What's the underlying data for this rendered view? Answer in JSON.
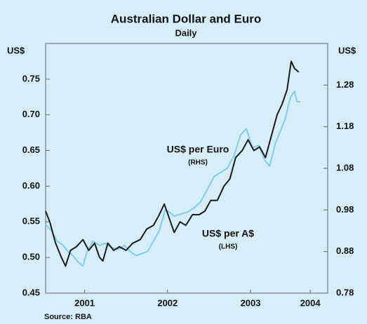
{
  "chart_data": {
    "type": "line",
    "title": "Australian Dollar and Euro",
    "subtitle": "Daily",
    "y_label": "US$",
    "y2_label": "US$",
    "source": "Source: RBA",
    "annotations": [
      {
        "text": "US$ per Euro",
        "note": "(RHS)"
      },
      {
        "text": "US$ per A$",
        "note": "(LHS)"
      }
    ],
    "xlim": [
      2001.03,
      2004.43
    ],
    "xticks": [
      {
        "value": 2001.5,
        "label": "2001"
      },
      {
        "value": 2002.5,
        "label": "2002"
      },
      {
        "value": 2003.5,
        "label": "2003"
      },
      {
        "value": 2004.22,
        "label": "2004"
      }
    ],
    "ylim": [
      0.45,
      0.8
    ],
    "yticks": [
      0.45,
      {
        "value": 0.5,
        "label": "0.50"
      },
      0.55,
      {
        "value": 0.6,
        "label": "0.60"
      },
      0.65,
      {
        "value": 0.7,
        "label": "0.70"
      },
      0.75
    ],
    "y2lim": [
      0.78,
      1.38
    ],
    "y2ticks": [
      0.78,
      0.88,
      0.98,
      1.08,
      1.18,
      1.28
    ],
    "grid": false,
    "series": [
      {
        "name": "US$ per A$",
        "color": "#1a1a1a",
        "axis": "y",
        "x": [
          2001.03,
          2001.08,
          2001.15,
          2001.22,
          2001.27,
          2001.33,
          2001.4,
          2001.48,
          2001.55,
          2001.62,
          2001.68,
          2001.72,
          2001.78,
          2001.85,
          2001.92,
          2002.0,
          2002.08,
          2002.17,
          2002.25,
          2002.33,
          2002.4,
          2002.46,
          2002.52,
          2002.58,
          2002.65,
          2002.72,
          2002.8,
          2002.88,
          2002.95,
          2003.02,
          2003.1,
          2003.18,
          2003.25,
          2003.32,
          2003.4,
          2003.47,
          2003.54,
          2003.61,
          2003.68,
          2003.75,
          2003.82,
          2003.88,
          2003.94,
          2003.99,
          2004.03,
          2004.08
        ],
        "values": [
          0.565,
          0.55,
          0.52,
          0.5,
          0.488,
          0.51,
          0.515,
          0.525,
          0.51,
          0.52,
          0.5,
          0.495,
          0.52,
          0.51,
          0.515,
          0.51,
          0.52,
          0.525,
          0.54,
          0.545,
          0.56,
          0.575,
          0.555,
          0.535,
          0.55,
          0.545,
          0.56,
          0.56,
          0.565,
          0.58,
          0.58,
          0.6,
          0.61,
          0.64,
          0.65,
          0.665,
          0.65,
          0.655,
          0.64,
          0.67,
          0.7,
          0.715,
          0.735,
          0.775,
          0.765,
          0.76
        ]
      },
      {
        "name": "US$ per Euro",
        "color": "#7fcdef",
        "axis": "y2",
        "x": [
          2001.03,
          2001.1,
          2001.17,
          2001.24,
          2001.3,
          2001.36,
          2001.42,
          2001.48,
          2001.53,
          2001.6,
          2001.68,
          2001.75,
          2001.82,
          2001.9,
          2001.98,
          2002.05,
          2002.12,
          2002.19,
          2002.26,
          2002.33,
          2002.4,
          2002.47,
          2002.52,
          2002.58,
          2002.66,
          2002.74,
          2002.82,
          2002.9,
          2002.98,
          2003.06,
          2003.14,
          2003.22,
          2003.3,
          2003.38,
          2003.45,
          2003.52,
          2003.6,
          2003.67,
          2003.73,
          2003.8,
          2003.86,
          2003.92,
          2003.98,
          2004.03,
          2004.06,
          2004.1
        ],
        "values": [
          0.945,
          0.93,
          0.905,
          0.895,
          0.88,
          0.87,
          0.855,
          0.845,
          0.88,
          0.905,
          0.895,
          0.9,
          0.89,
          0.885,
          0.895,
          0.88,
          0.87,
          0.875,
          0.88,
          0.905,
          0.93,
          0.98,
          0.975,
          0.965,
          0.97,
          0.975,
          0.985,
          1.0,
          1.03,
          1.06,
          1.07,
          1.08,
          1.11,
          1.16,
          1.175,
          1.13,
          1.135,
          1.1,
          1.085,
          1.14,
          1.17,
          1.2,
          1.25,
          1.265,
          1.24,
          1.24
        ]
      }
    ]
  }
}
